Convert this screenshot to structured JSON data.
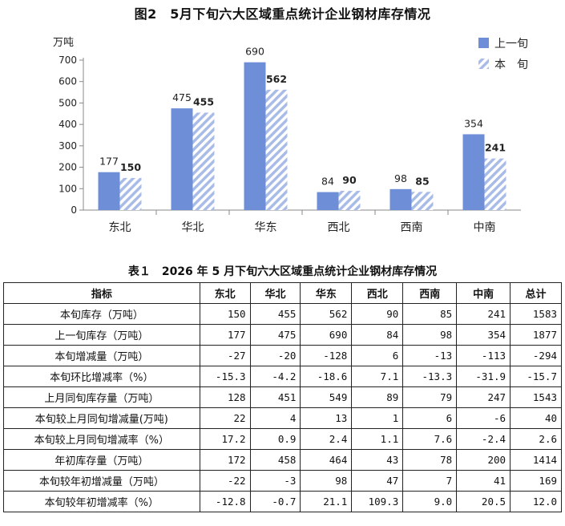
{
  "chart_data": {
    "type": "bar",
    "title": "图2　5月下旬六大区域重点统计企业钢材库存情况",
    "ylabel": "万吨",
    "xlabel": "",
    "ylim": [
      0,
      700
    ],
    "yticks": [
      0,
      100,
      200,
      300,
      400,
      500,
      600,
      700
    ],
    "categories": [
      "东北",
      "华北",
      "华东",
      "西北",
      "西南",
      "中南"
    ],
    "series": [
      {
        "name": "上一旬",
        "values": [
          177,
          475,
          690,
          84,
          98,
          354
        ],
        "color": "#6e8fd8",
        "pattern": "solid"
      },
      {
        "name": "本　旬",
        "values": [
          150,
          455,
          562,
          90,
          85,
          241
        ],
        "color": "#a9bce8",
        "pattern": "hatched"
      }
    ],
    "legend_position": "top-right",
    "grid": false
  },
  "table": {
    "title": "表１　2026 年 5 月下旬六大区域重点统计企业钢材库存情况",
    "headers": [
      "指标",
      "东北",
      "华北",
      "华东",
      "西北",
      "西南",
      "中南",
      "总计"
    ],
    "rows": [
      {
        "label": "本旬库存（万吨）",
        "values": [
          "150",
          "455",
          "562",
          "90",
          "85",
          "241",
          "1583"
        ]
      },
      {
        "label": "上一旬库存（万吨）",
        "values": [
          "177",
          "475",
          "690",
          "84",
          "98",
          "354",
          "1877"
        ]
      },
      {
        "label": "本旬增减量（万吨）",
        "values": [
          "-27",
          "-20",
          "-128",
          "6",
          "-13",
          "-113",
          "-294"
        ]
      },
      {
        "label": "本旬环比增减率（%）",
        "values": [
          "-15.3",
          "-4.2",
          "-18.6",
          "7.1",
          "-13.3",
          "-31.9",
          "-15.7"
        ]
      },
      {
        "label": "上月同旬库存量（万吨）",
        "values": [
          "128",
          "451",
          "549",
          "89",
          "79",
          "247",
          "1543"
        ]
      },
      {
        "label": "本旬较上月同旬增减量(万吨)",
        "values": [
          "22",
          "4",
          "13",
          "1",
          "6",
          "-6",
          "40"
        ]
      },
      {
        "label": "本旬较上月同旬增减率（%）",
        "values": [
          "17.2",
          "0.9",
          "2.4",
          "1.1",
          "7.6",
          "-2.4",
          "2.6"
        ]
      },
      {
        "label": "年初库存量（万吨）",
        "values": [
          "172",
          "458",
          "464",
          "43",
          "78",
          "200",
          "1414"
        ]
      },
      {
        "label": "本旬较年初增减量（万吨）",
        "values": [
          "-22",
          "-3",
          "98",
          "47",
          "7",
          "41",
          "169"
        ]
      },
      {
        "label": "本旬较年初增减率（%）",
        "values": [
          "-12.8",
          "-0.7",
          "21.1",
          "109.3",
          "9.0",
          "20.5",
          "12.0"
        ]
      }
    ]
  }
}
